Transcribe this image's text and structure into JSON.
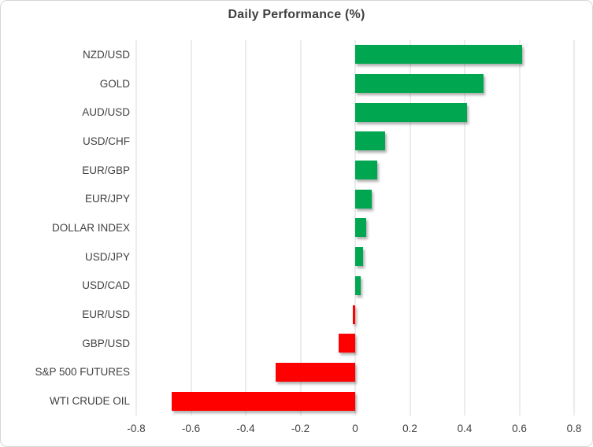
{
  "chart_data": {
    "type": "bar",
    "orientation": "horizontal",
    "title": "Daily Performance (%)",
    "categories": [
      "NZD/USD",
      "GOLD",
      "AUD/USD",
      "USD/CHF",
      "EUR/GBP",
      "EUR/JPY",
      "DOLLAR INDEX",
      "USD/JPY",
      "USD/CAD",
      "EUR/USD",
      "GBP/USD",
      "S&P 500 FUTURES",
      "WTI CRUDE OIL"
    ],
    "values": [
      0.61,
      0.47,
      0.41,
      0.11,
      0.08,
      0.06,
      0.04,
      0.03,
      0.02,
      -0.01,
      -0.06,
      -0.29,
      -0.67
    ],
    "xlabel": "",
    "ylabel": "",
    "xlim": [
      -0.8,
      0.8
    ],
    "x_ticks": [
      "-0.8",
      "-0.6",
      "-0.4",
      "-0.2",
      "0",
      "0.2",
      "0.4",
      "0.6",
      "0.8"
    ],
    "grid": true,
    "legend": false,
    "colors": {
      "positive": "#00a650",
      "negative": "#ff0000",
      "gridline": "#d9d9d9",
      "text": "#404040",
      "title_text": "#3f3f3f",
      "frame_border": "#d7d7d7"
    }
  }
}
